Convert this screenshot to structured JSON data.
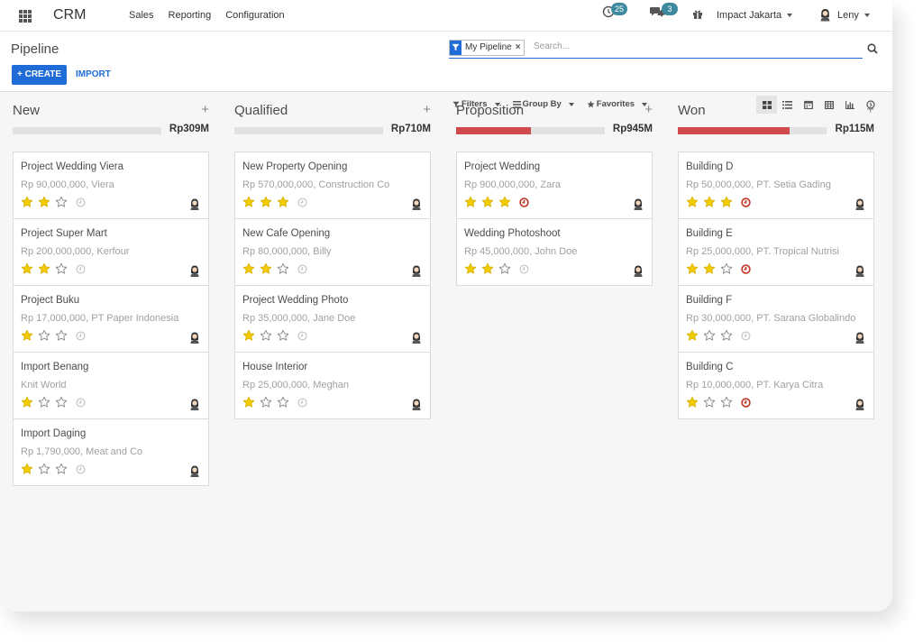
{
  "app": {
    "name": "CRM"
  },
  "menu": [
    {
      "label": "Sales"
    },
    {
      "label": "Reporting"
    },
    {
      "label": "Configuration"
    }
  ],
  "systray": {
    "activities_count": "25",
    "messages_count": "3",
    "company": "Impact Jakarta",
    "user": "Leny"
  },
  "control_panel": {
    "title": "Pipeline",
    "create_label": "+ CREATE",
    "import_label": "IMPORT",
    "facet_label": "My Pipeline",
    "search_placeholder": "Search...",
    "filters_label": "Filters",
    "groupby_label": "Group By",
    "favorites_label": "Favorites",
    "active_view": "kanban"
  },
  "colors": {
    "accent": "#1f6cd9",
    "won_bar": "#d04a4d",
    "star": "#f3cc00",
    "overdue": "#c0392b",
    "badge": "#3d8aa0"
  },
  "columns": [
    {
      "title": "New",
      "add": "+",
      "amount": "Rp309M",
      "progress_red": 0.0,
      "cards": [
        {
          "name": "Project Wedding Viera",
          "sub": "Rp 90,000,000, Viera",
          "stars": 2,
          "overdue": false
        },
        {
          "name": "Project Super Mart",
          "sub": "Rp 200,000,000, Kerfour",
          "stars": 2,
          "overdue": false
        },
        {
          "name": "Project Buku",
          "sub": "Rp 17,000,000, PT Paper Indonesia",
          "stars": 1,
          "overdue": false
        },
        {
          "name": "Import Benang",
          "sub": "Knit World",
          "stars": 1,
          "overdue": false
        },
        {
          "name": "Import Daging",
          "sub": "Rp 1,790,000, Meat and Co",
          "stars": 1,
          "overdue": false
        }
      ]
    },
    {
      "title": "Qualified",
      "add": "+",
      "amount": "Rp710M",
      "progress_red": 0.0,
      "cards": [
        {
          "name": "New Property Opening",
          "sub": "Rp 570,000,000, Construction Co",
          "stars": 3,
          "overdue": false
        },
        {
          "name": "New Cafe Opening",
          "sub": "Rp 80,000,000, Billy",
          "stars": 2,
          "overdue": false
        },
        {
          "name": "Project Wedding Photo",
          "sub": "Rp 35,000,000, Jane Doe",
          "stars": 1,
          "overdue": false
        },
        {
          "name": "House Interior",
          "sub": "Rp 25,000,000, Meghan",
          "stars": 1,
          "overdue": false
        }
      ]
    },
    {
      "title": "Proposition",
      "add": "+",
      "amount": "Rp945M",
      "progress_red": 0.5,
      "cards": [
        {
          "name": "Project Wedding",
          "sub": "Rp 900,000,000, Zara",
          "stars": 3,
          "overdue": true
        },
        {
          "name": "Wedding Photoshoot",
          "sub": "Rp 45,000,000, John Doe",
          "stars": 2,
          "overdue": false
        }
      ]
    },
    {
      "title": "Won",
      "add": "+",
      "amount": "Rp115M",
      "progress_red": 0.75,
      "cards": [
        {
          "name": "Building D",
          "sub": "Rp 50,000,000, PT. Setia Gading",
          "stars": 3,
          "overdue": true
        },
        {
          "name": "Building E",
          "sub": "Rp 25,000,000, PT. Tropical Nutrisi",
          "stars": 2,
          "overdue": true
        },
        {
          "name": "Building F",
          "sub": "Rp 30,000,000, PT. Sarana Globalindo",
          "stars": 1,
          "overdue": false
        },
        {
          "name": "Building C",
          "sub": "Rp 10,000,000, PT. Karya Citra",
          "stars": 1,
          "overdue": true
        }
      ]
    }
  ]
}
